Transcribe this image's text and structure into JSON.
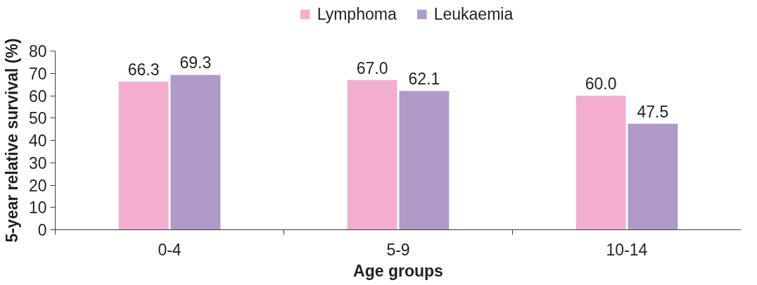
{
  "chart_data": {
    "type": "bar",
    "xlabel": "Age groups",
    "ylabel": "5-year relative survival (%)",
    "categories": [
      "0-4",
      "5-9",
      "10-14"
    ],
    "series": [
      {
        "name": "Lymphoma",
        "color": "#f3aecf",
        "values": [
          66.3,
          67.0,
          60.0
        ],
        "value_labels": [
          "66.3",
          "67.0",
          "60.0"
        ]
      },
      {
        "name": "Leukaemia",
        "color": "#b09ac8",
        "values": [
          69.3,
          62.1,
          47.5
        ],
        "value_labels": [
          "69.3",
          "62.1",
          "47.5"
        ]
      }
    ],
    "ylim": [
      0,
      80
    ],
    "yticks": [
      0,
      10,
      20,
      30,
      40,
      50,
      60,
      70,
      80
    ],
    "grid": false,
    "legend": "top"
  }
}
